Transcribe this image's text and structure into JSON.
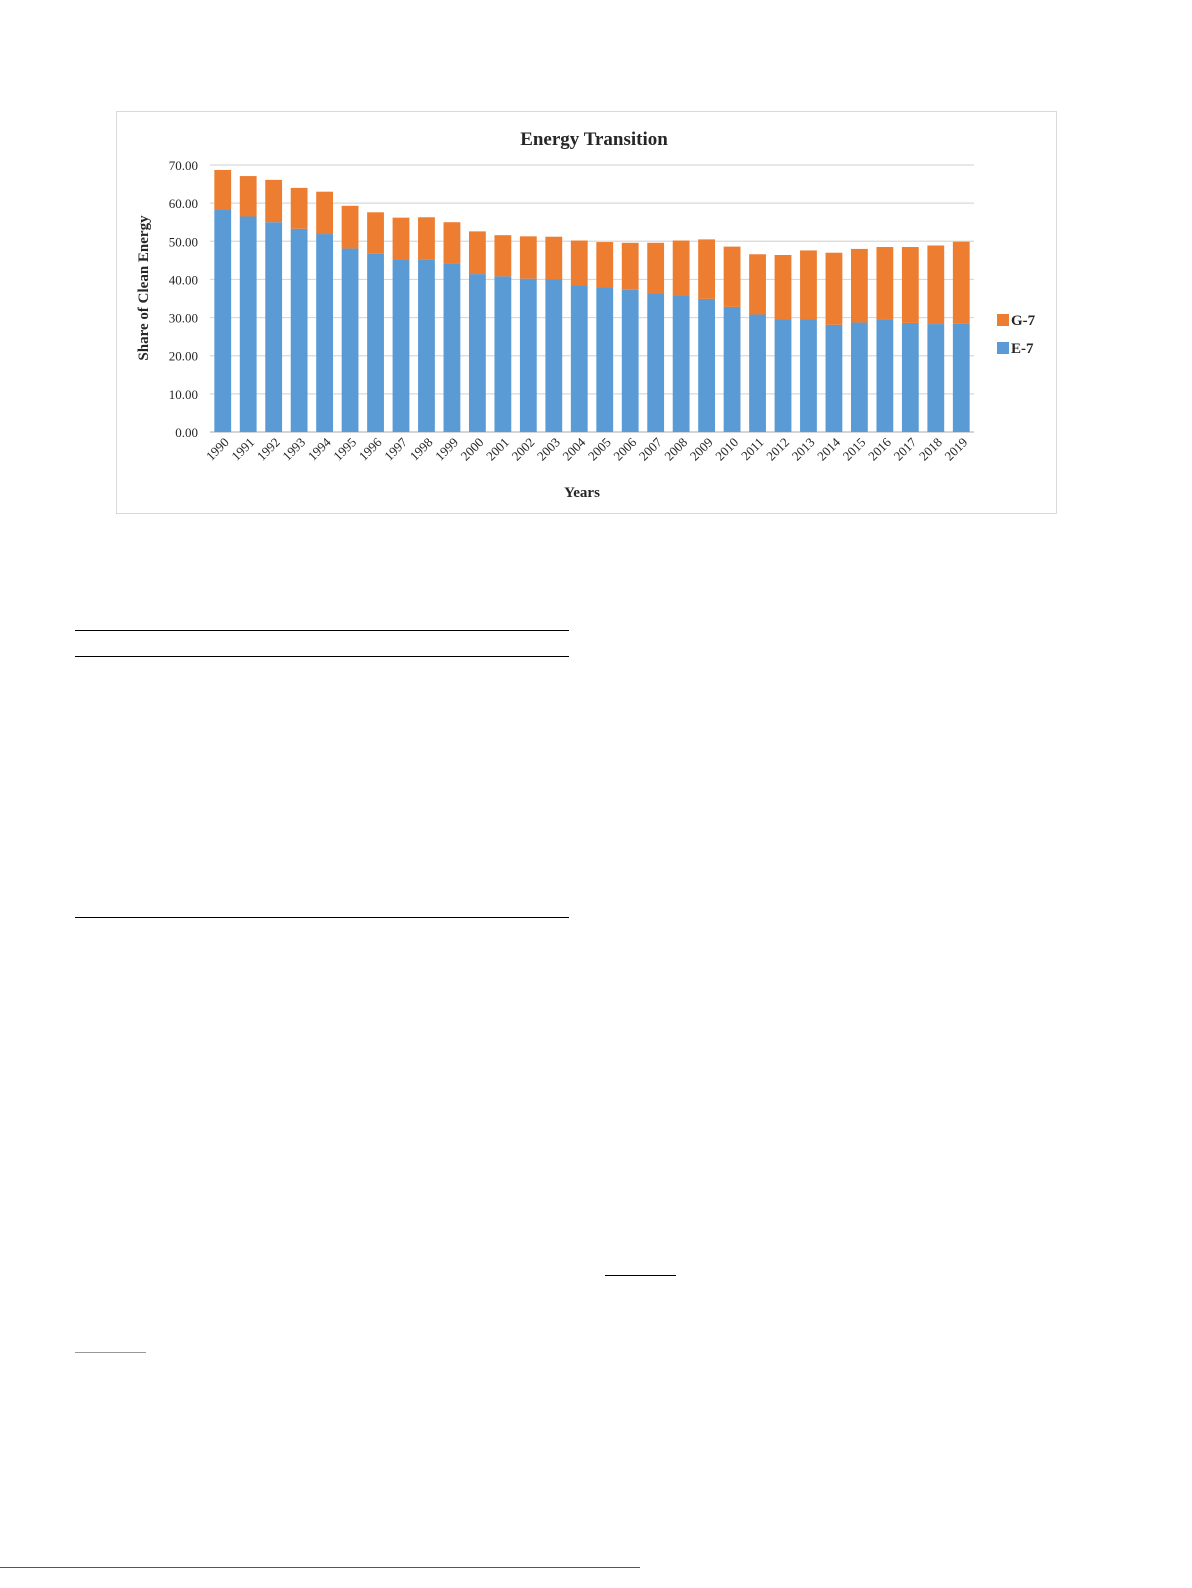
{
  "colors": {
    "g7": "#ed7d31",
    "e7": "#5b9bd5",
    "grid": "#d9d9d9",
    "axis_text": "#262626"
  },
  "chart_data": {
    "type": "bar",
    "stacked": true,
    "title": "Energy Transition",
    "xlabel": "Years",
    "ylabel": "Share of Clean Energy",
    "ylim": [
      0,
      70
    ],
    "yticks": [
      "0.00",
      "10.00",
      "20.00",
      "30.00",
      "40.00",
      "50.00",
      "60.00",
      "70.00"
    ],
    "grid": true,
    "legend_position": "right",
    "legend": [
      "G-7",
      "E-7"
    ],
    "categories": [
      "1990",
      "1991",
      "1992",
      "1993",
      "1994",
      "1995",
      "1996",
      "1997",
      "1998",
      "1999",
      "2000",
      "2001",
      "2002",
      "2003",
      "2004",
      "2005",
      "2006",
      "2007",
      "2008",
      "2009",
      "2010",
      "2011",
      "2012",
      "2013",
      "2014",
      "2015",
      "2016",
      "2017",
      "2018",
      "2019"
    ],
    "series": [
      {
        "name": "E-7",
        "values": [
          58.2,
          56.5,
          55.0,
          53.3,
          51.9,
          48.1,
          46.7,
          45.1,
          45.3,
          44.2,
          41.4,
          40.8,
          40.2,
          40.1,
          38.4,
          38.0,
          37.3,
          36.3,
          35.9,
          34.9,
          32.8,
          30.8,
          29.5,
          29.5,
          28.1,
          28.7,
          29.6,
          28.6,
          28.3,
          28.5
        ]
      },
      {
        "name": "G-7",
        "values": [
          10.5,
          10.6,
          11.1,
          10.7,
          11.1,
          11.2,
          10.9,
          11.1,
          11.0,
          10.8,
          11.2,
          10.8,
          11.1,
          11.1,
          11.8,
          11.8,
          12.3,
          13.3,
          14.3,
          15.6,
          15.8,
          15.8,
          16.9,
          18.1,
          18.9,
          19.3,
          18.9,
          19.9,
          20.6,
          21.4
        ]
      }
    ]
  }
}
